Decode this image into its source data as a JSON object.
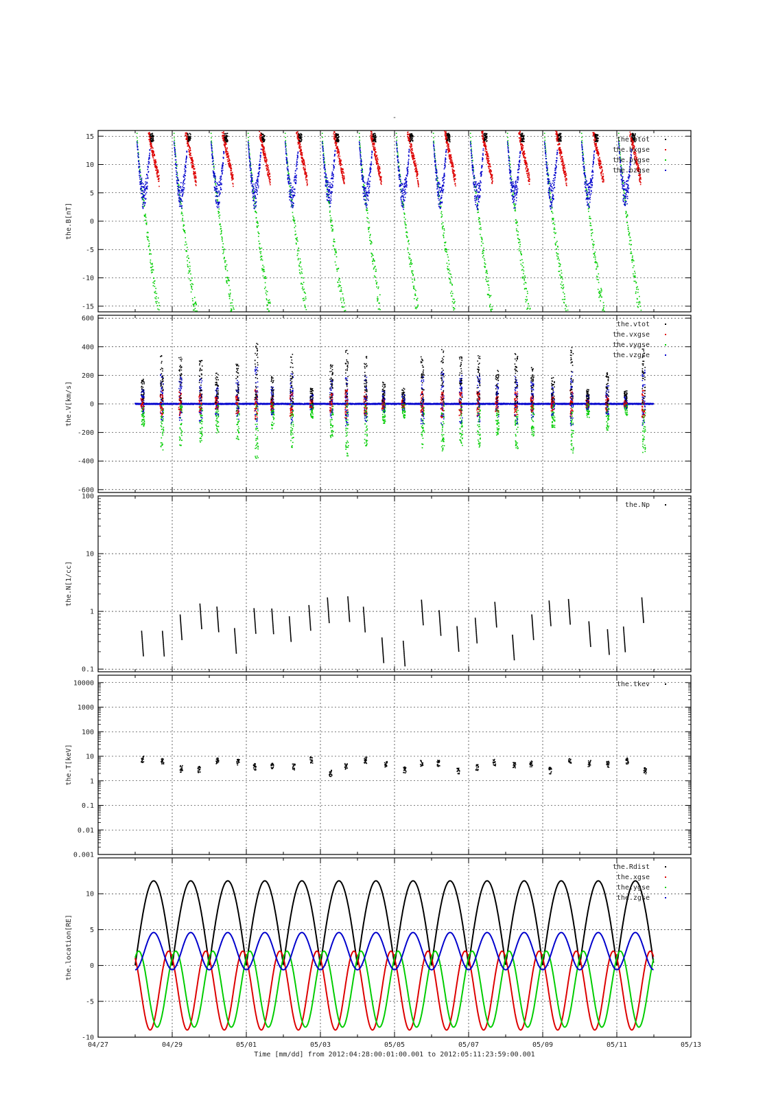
{
  "page": {
    "title_mark": "-",
    "xlabel": "Time [mm/dd]  from 2012:04:28:00:01:00.001  to  2012:05:11:23:59:00.001"
  },
  "x_axis": {
    "range_days": [
      0,
      16
    ],
    "tick_labels": [
      "04/27",
      "04/29",
      "05/01",
      "05/03",
      "05/05",
      "05/07",
      "05/09",
      "05/11",
      "05/13"
    ],
    "tick_days": [
      0,
      2,
      4,
      6,
      8,
      10,
      12,
      14,
      16
    ],
    "data_range_days": [
      1.0,
      14.99
    ]
  },
  "colors": {
    "black": "#000000",
    "red": "#dd0000",
    "green": "#00cc00",
    "blue": "#0000cc"
  },
  "chart_data": [
    {
      "type": "scatter",
      "ylabel": "the.B[nT]",
      "ylim": [
        -16,
        16
      ],
      "yscale": "linear",
      "yticks": [
        -15,
        -10,
        -5,
        0,
        5,
        10,
        15
      ],
      "ytick_labels": [
        "-15",
        "-10",
        "-5",
        "0",
        "5",
        "10",
        "15"
      ],
      "grid": true,
      "legend_placement": "top-right",
      "series": [
        {
          "name": "the.btot",
          "color": "#000000"
        },
        {
          "name": "the.bxgse",
          "color": "#dd0000"
        },
        {
          "name": "the.bygse",
          "color": "#00cc00"
        },
        {
          "name": "the.bzgse",
          "color": "#0000cc"
        }
      ]
    },
    {
      "type": "scatter",
      "ylabel": "the.V[km/s]",
      "ylim": [
        -620,
        620
      ],
      "yscale": "linear",
      "yticks": [
        -600,
        -400,
        -200,
        0,
        200,
        400,
        600
      ],
      "ytick_labels": [
        "-600",
        "-400",
        "-200",
        "0",
        "200",
        "400",
        "600"
      ],
      "grid": true,
      "legend_placement": "top-right",
      "series": [
        {
          "name": "the.vtot",
          "color": "#000000"
        },
        {
          "name": "the.vxgse",
          "color": "#dd0000"
        },
        {
          "name": "the.vygse",
          "color": "#00cc00"
        },
        {
          "name": "the.vzgse",
          "color": "#0000cc"
        }
      ]
    },
    {
      "type": "scatter",
      "ylabel": "the.N[1/cc]",
      "ylim": [
        0.09,
        100
      ],
      "yscale": "log",
      "yticks": [
        0.1,
        1,
        10,
        100
      ],
      "ytick_labels": [
        "0.1",
        "1",
        "10",
        "100"
      ],
      "grid": true,
      "legend_placement": "top-right",
      "series": [
        {
          "name": "the.Np",
          "color": "#000000"
        }
      ]
    },
    {
      "type": "scatter",
      "ylabel": "the.T[keV]",
      "ylim": [
        0.001,
        20000
      ],
      "yscale": "log",
      "yticks": [
        0.01,
        0.1,
        1,
        10,
        100,
        1000,
        10000
      ],
      "ytick_labels": [
        "0.01",
        "0.1",
        "1",
        "10",
        "100",
        "1000",
        "10000"
      ],
      "bottom_tick_label": "0.001",
      "grid": true,
      "legend_placement": "top-right",
      "series": [
        {
          "name": "the.tkev",
          "color": "#000000"
        }
      ]
    },
    {
      "type": "line",
      "ylabel": "the.location[RE]",
      "ylim": [
        -10,
        15
      ],
      "yscale": "linear",
      "yticks": [
        -10,
        -5,
        0,
        5,
        10
      ],
      "ytick_labels": [
        "-10",
        "-5",
        "0",
        "5",
        "10"
      ],
      "grid": true,
      "legend_placement": "top-right",
      "orbit_period_days": 1.0,
      "apogee_re": 11.8,
      "series": [
        {
          "name": "the.Rdist",
          "color": "#000000",
          "min": 0,
          "max": 11.8
        },
        {
          "name": "the.xgse",
          "color": "#dd0000",
          "min": -9.0,
          "max": 2.0
        },
        {
          "name": "the.ygse",
          "color": "#00cc00",
          "min": -8.6,
          "max": 2.0
        },
        {
          "name": "the.zgse",
          "color": "#0000cc",
          "min": -0.6,
          "max": 4.6
        }
      ]
    }
  ]
}
